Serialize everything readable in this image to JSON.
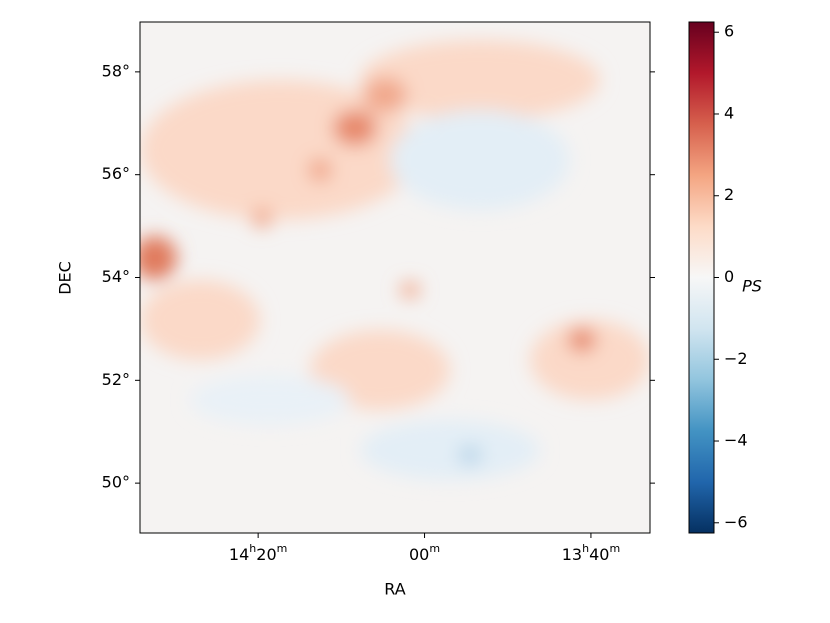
{
  "chart_data": {
    "type": "heatmap",
    "x_label": "RA",
    "y_label": "DEC",
    "colorbar_label": "PS",
    "xlim": [
      874.2,
      812.9
    ],
    "xticks": [
      {
        "value": 860,
        "label": "14h20m"
      },
      {
        "value": 840,
        "label": "00m"
      },
      {
        "value": 820,
        "label": "13h40m"
      }
    ],
    "ylim": [
      49.03,
      58.97
    ],
    "yticks": [
      {
        "value": 50,
        "label": "50°"
      },
      {
        "value": 52,
        "label": "52°"
      },
      {
        "value": 54,
        "label": "54°"
      },
      {
        "value": 56,
        "label": "56°"
      },
      {
        "value": 58,
        "label": "58°"
      }
    ],
    "clim": [
      -6.25,
      6.25
    ],
    "cticks": [
      {
        "value": -6,
        "label": "−6"
      },
      {
        "value": -4,
        "label": "−4"
      },
      {
        "value": -2,
        "label": "−2"
      },
      0,
      2,
      4,
      6
    ],
    "colormap": [
      "#053061",
      "#2166ac",
      "#4393c3",
      "#92c5de",
      "#d1e5f0",
      "#f7f7f7",
      "#fddbc7",
      "#f4a582",
      "#d6604d",
      "#b2182b",
      "#67001f"
    ]
  }
}
